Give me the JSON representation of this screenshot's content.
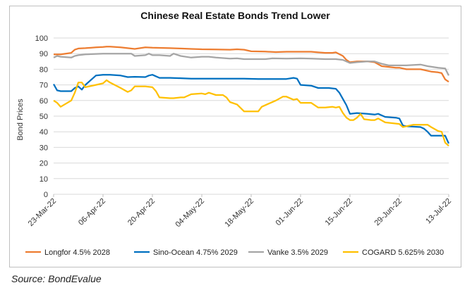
{
  "chart_data": {
    "type": "line",
    "title": "Chinese Real Estate Bonds Trend Lower",
    "xlabel": "",
    "ylabel": "Bond Prices",
    "ylim": [
      0,
      100
    ],
    "yticks": [
      0,
      10,
      20,
      30,
      40,
      50,
      60,
      70,
      80,
      90,
      100
    ],
    "xticks": [
      "23-Mar-22",
      "06-Apr-22",
      "20-Apr-22",
      "04-May-22",
      "18-May-22",
      "01-Jun-22",
      "15-Jun-22",
      "29-Jun-22",
      "13-Jul-22"
    ],
    "grid": true,
    "legend_position": "bottom",
    "series": [
      {
        "name": "Longfor 4.5% 2028",
        "color": "#ED7D31",
        "points": [
          [
            "23-Mar-22",
            89.5
          ],
          [
            "25-Mar-22",
            89.5
          ],
          [
            "28-Mar-22",
            90.5
          ],
          [
            "29-Mar-22",
            92.5
          ],
          [
            "30-Mar-22",
            93.3
          ],
          [
            "01-Apr-22",
            93.5
          ],
          [
            "04-Apr-22",
            94
          ],
          [
            "06-Apr-22",
            94.3
          ],
          [
            "07-Apr-22",
            94.5
          ],
          [
            "08-Apr-22",
            94.5
          ],
          [
            "11-Apr-22",
            94
          ],
          [
            "13-Apr-22",
            93.5
          ],
          [
            "15-Apr-22",
            93
          ],
          [
            "18-Apr-22",
            94
          ],
          [
            "20-Apr-22",
            93.8
          ],
          [
            "22-Apr-22",
            93.7
          ],
          [
            "25-Apr-22",
            93.5
          ],
          [
            "28-Apr-22",
            93.3
          ],
          [
            "01-May-22",
            93
          ],
          [
            "04-May-22",
            92.8
          ],
          [
            "08-May-22",
            92.7
          ],
          [
            "12-May-22",
            92.5
          ],
          [
            "14-May-22",
            92.8
          ],
          [
            "16-May-22",
            92.5
          ],
          [
            "18-May-22",
            91.5
          ],
          [
            "22-May-22",
            91.3
          ],
          [
            "25-May-22",
            91
          ],
          [
            "28-May-22",
            91.2
          ],
          [
            "01-Jun-22",
            91.2
          ],
          [
            "04-Jun-22",
            91.2
          ],
          [
            "06-Jun-22",
            90.8
          ],
          [
            "08-Jun-22",
            90.5
          ],
          [
            "10-Jun-22",
            90.5
          ],
          [
            "11-Jun-22",
            90.8
          ],
          [
            "13-Jun-22",
            88.5
          ],
          [
            "14-Jun-22",
            86
          ],
          [
            "15-Jun-22",
            84.5
          ],
          [
            "17-Jun-22",
            85
          ],
          [
            "20-Jun-22",
            85
          ],
          [
            "22-Jun-22",
            84.5
          ],
          [
            "24-Jun-22",
            82
          ],
          [
            "26-Jun-22",
            81.5
          ],
          [
            "28-Jun-22",
            81
          ],
          [
            "29-Jun-22",
            81
          ],
          [
            "01-Jul-22",
            80
          ],
          [
            "05-Jul-22",
            80
          ],
          [
            "08-Jul-22",
            78.5
          ],
          [
            "10-Jul-22",
            78
          ],
          [
            "11-Jul-22",
            77.5
          ],
          [
            "12-Jul-22",
            73.5
          ],
          [
            "13-Jul-22",
            72
          ]
        ]
      },
      {
        "name": "Sino-Ocean 4.75% 2029",
        "color": "#0070C0",
        "points": [
          [
            "23-Mar-22",
            70.5
          ],
          [
            "24-Mar-22",
            66.5
          ],
          [
            "25-Mar-22",
            66
          ],
          [
            "28-Mar-22",
            66
          ],
          [
            "29-Mar-22",
            68
          ],
          [
            "30-Mar-22",
            69
          ],
          [
            "31-Mar-22",
            67
          ],
          [
            "01-Apr-22",
            70
          ],
          [
            "04-Apr-22",
            76
          ],
          [
            "06-Apr-22",
            76.5
          ],
          [
            "08-Apr-22",
            76.5
          ],
          [
            "11-Apr-22",
            76
          ],
          [
            "13-Apr-22",
            75
          ],
          [
            "15-Apr-22",
            75.2
          ],
          [
            "18-Apr-22",
            75
          ],
          [
            "19-Apr-22",
            76
          ],
          [
            "20-Apr-22",
            76.5
          ],
          [
            "22-Apr-22",
            74.5
          ],
          [
            "25-Apr-22",
            74.5
          ],
          [
            "28-Apr-22",
            74.3
          ],
          [
            "01-May-22",
            74
          ],
          [
            "04-May-22",
            74
          ],
          [
            "08-May-22",
            74
          ],
          [
            "12-May-22",
            74
          ],
          [
            "16-May-22",
            74
          ],
          [
            "20-May-22",
            73.8
          ],
          [
            "24-May-22",
            73.8
          ],
          [
            "28-May-22",
            73.8
          ],
          [
            "30-May-22",
            74.5
          ],
          [
            "31-May-22",
            74
          ],
          [
            "01-Jun-22",
            70
          ],
          [
            "04-Jun-22",
            69.5
          ],
          [
            "06-Jun-22",
            68
          ],
          [
            "09-Jun-22",
            68
          ],
          [
            "11-Jun-22",
            67.5
          ],
          [
            "12-Jun-22",
            65
          ],
          [
            "13-Jun-22",
            61
          ],
          [
            "14-Jun-22",
            57
          ],
          [
            "15-Jun-22",
            51.5
          ],
          [
            "17-Jun-22",
            52
          ],
          [
            "20-Jun-22",
            51.5
          ],
          [
            "22-Jun-22",
            51
          ],
          [
            "23-Jun-22",
            51.5
          ],
          [
            "25-Jun-22",
            49.5
          ],
          [
            "28-Jun-22",
            49
          ],
          [
            "29-Jun-22",
            48.5
          ],
          [
            "30-Jun-22",
            44
          ],
          [
            "01-Jul-22",
            43.5
          ],
          [
            "05-Jul-22",
            43
          ],
          [
            "06-Jul-22",
            42
          ],
          [
            "07-Jul-22",
            40
          ],
          [
            "08-Jul-22",
            37.5
          ],
          [
            "11-Jul-22",
            37.5
          ],
          [
            "12-Jul-22",
            37.5
          ],
          [
            "13-Jul-22",
            32.5
          ]
        ]
      },
      {
        "name": "Vanke 3.5% 2029",
        "color": "#A5A5A5",
        "points": [
          [
            "23-Mar-22",
            87.5
          ],
          [
            "24-Mar-22",
            88.5
          ],
          [
            "25-Mar-22",
            88
          ],
          [
            "28-Mar-22",
            87.5
          ],
          [
            "29-Mar-22",
            88.5
          ],
          [
            "30-Mar-22",
            89
          ],
          [
            "01-Apr-22",
            89.5
          ],
          [
            "04-Apr-22",
            89.8
          ],
          [
            "06-Apr-22",
            90
          ],
          [
            "08-Apr-22",
            90
          ],
          [
            "11-Apr-22",
            90
          ],
          [
            "14-Apr-22",
            90
          ],
          [
            "15-Apr-22",
            88.5
          ],
          [
            "18-Apr-22",
            89
          ],
          [
            "19-Apr-22",
            90
          ],
          [
            "20-Apr-22",
            89
          ],
          [
            "22-Apr-22",
            89
          ],
          [
            "25-Apr-22",
            88.5
          ],
          [
            "26-Apr-22",
            90
          ],
          [
            "28-Apr-22",
            88.5
          ],
          [
            "01-May-22",
            87.5
          ],
          [
            "04-May-22",
            88
          ],
          [
            "06-May-22",
            88
          ],
          [
            "08-May-22",
            87.5
          ],
          [
            "12-May-22",
            86.8
          ],
          [
            "14-May-22",
            87
          ],
          [
            "16-May-22",
            86.5
          ],
          [
            "18-May-22",
            86.5
          ],
          [
            "20-May-22",
            86.5
          ],
          [
            "22-May-22",
            86.5
          ],
          [
            "24-May-22",
            87
          ],
          [
            "28-May-22",
            86.8
          ],
          [
            "01-Jun-22",
            87
          ],
          [
            "04-Jun-22",
            86.8
          ],
          [
            "08-Jun-22",
            86.5
          ],
          [
            "11-Jun-22",
            86.5
          ],
          [
            "13-Jun-22",
            86
          ],
          [
            "15-Jun-22",
            84
          ],
          [
            "17-Jun-22",
            84.5
          ],
          [
            "20-Jun-22",
            85
          ],
          [
            "22-Jun-22",
            85
          ],
          [
            "24-Jun-22",
            83.5
          ],
          [
            "26-Jun-22",
            82.5
          ],
          [
            "28-Jun-22",
            82.5
          ],
          [
            "29-Jun-22",
            82.5
          ],
          [
            "01-Jul-22",
            82.5
          ],
          [
            "05-Jul-22",
            83
          ],
          [
            "07-Jul-22",
            82
          ],
          [
            "10-Jul-22",
            81
          ],
          [
            "12-Jul-22",
            80.5
          ],
          [
            "13-Jul-22",
            76
          ]
        ]
      },
      {
        "name": "COGARD 5.625% 2030",
        "color": "#FFC000",
        "points": [
          [
            "23-Mar-22",
            60
          ],
          [
            "24-Mar-22",
            58.5
          ],
          [
            "25-Mar-22",
            56
          ],
          [
            "28-Mar-22",
            60
          ],
          [
            "29-Mar-22",
            65
          ],
          [
            "30-Mar-22",
            71.5
          ],
          [
            "31-Mar-22",
            71.5
          ],
          [
            "01-Apr-22",
            68.5
          ],
          [
            "04-Apr-22",
            70
          ],
          [
            "05-Apr-22",
            70.5
          ],
          [
            "06-Apr-22",
            71
          ],
          [
            "07-Apr-22",
            73
          ],
          [
            "08-Apr-22",
            71.5
          ],
          [
            "11-Apr-22",
            68
          ],
          [
            "13-Apr-22",
            65.5
          ],
          [
            "14-Apr-22",
            66.5
          ],
          [
            "15-Apr-22",
            69
          ],
          [
            "18-Apr-22",
            69
          ],
          [
            "20-Apr-22",
            68.5
          ],
          [
            "21-Apr-22",
            66
          ],
          [
            "22-Apr-22",
            62
          ],
          [
            "25-Apr-22",
            61.5
          ],
          [
            "26-Apr-22",
            61.5
          ],
          [
            "28-Apr-22",
            62
          ],
          [
            "29-Apr-22",
            62
          ],
          [
            "01-May-22",
            64
          ],
          [
            "04-May-22",
            64.5
          ],
          [
            "05-May-22",
            64
          ],
          [
            "06-May-22",
            65
          ],
          [
            "08-May-22",
            63.5
          ],
          [
            "10-May-22",
            63.5
          ],
          [
            "11-May-22",
            62
          ],
          [
            "12-May-22",
            59
          ],
          [
            "14-May-22",
            57.5
          ],
          [
            "16-May-22",
            53
          ],
          [
            "18-May-22",
            53
          ],
          [
            "20-May-22",
            53
          ],
          [
            "21-May-22",
            56
          ],
          [
            "23-May-22",
            58
          ],
          [
            "25-May-22",
            60
          ],
          [
            "27-May-22",
            62.5
          ],
          [
            "28-May-22",
            62.5
          ],
          [
            "30-May-22",
            60.5
          ],
          [
            "31-May-22",
            61
          ],
          [
            "01-Jun-22",
            58.5
          ],
          [
            "04-Jun-22",
            58.5
          ],
          [
            "06-Jun-22",
            55.5
          ],
          [
            "08-Jun-22",
            55.5
          ],
          [
            "10-Jun-22",
            56
          ],
          [
            "11-Jun-22",
            55.5
          ],
          [
            "12-Jun-22",
            56
          ],
          [
            "13-Jun-22",
            52
          ],
          [
            "14-Jun-22",
            49
          ],
          [
            "15-Jun-22",
            47.5
          ],
          [
            "16-Jun-22",
            47.5
          ],
          [
            "17-Jun-22",
            49
          ],
          [
            "18-Jun-22",
            51.5
          ],
          [
            "19-Jun-22",
            48
          ],
          [
            "21-Jun-22",
            47.5
          ],
          [
            "22-Jun-22",
            47.5
          ],
          [
            "23-Jun-22",
            48.5
          ],
          [
            "25-Jun-22",
            46
          ],
          [
            "27-Jun-22",
            45.5
          ],
          [
            "29-Jun-22",
            45
          ],
          [
            "30-Jun-22",
            43
          ],
          [
            "01-Jul-22",
            43.5
          ],
          [
            "03-Jul-22",
            44.5
          ],
          [
            "05-Jul-22",
            44.5
          ],
          [
            "07-Jul-22",
            44.5
          ],
          [
            "08-Jul-22",
            43
          ],
          [
            "10-Jul-22",
            40.5
          ],
          [
            "11-Jul-22",
            40
          ],
          [
            "12-Jul-22",
            33
          ],
          [
            "13-Jul-22",
            31
          ]
        ]
      }
    ]
  },
  "source": "Source: BondEvalue"
}
